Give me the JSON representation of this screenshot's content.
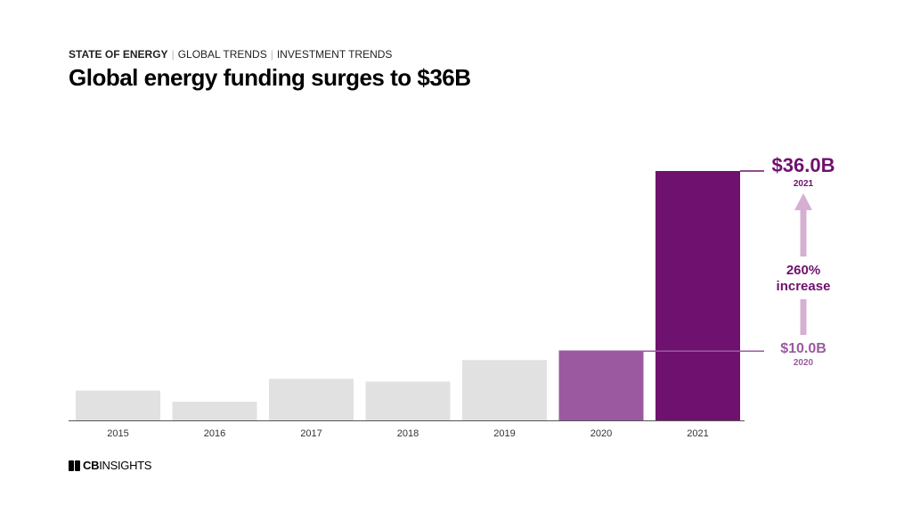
{
  "header": {
    "breadcrumb": [
      "STATE OF ENERGY",
      "GLOBAL TRENDS",
      "INVESTMENT TRENDS"
    ],
    "title": "Global energy funding surges to $36B"
  },
  "chart_data": {
    "type": "bar",
    "categories": [
      "2015",
      "2016",
      "2017",
      "2018",
      "2019",
      "2020",
      "2021"
    ],
    "values": [
      4.3,
      2.7,
      6.0,
      5.6,
      8.7,
      10.0,
      36.0
    ],
    "ylim": [
      0,
      36.0
    ],
    "grid": false,
    "colors": [
      "#e1e1e1",
      "#e1e1e1",
      "#e1e1e1",
      "#e1e1e1",
      "#e1e1e1",
      "#9b5aa0",
      "#6f116e"
    ],
    "annotations": {
      "top_value": "$36.0B",
      "top_year": "2021",
      "increase_pct": "260%",
      "increase_word": "increase",
      "base_value": "$10.0B",
      "base_year": "2020"
    },
    "annotation_colors": {
      "top": "#6f116e",
      "base": "#9b5aa0",
      "arrow": "#d5b0d3",
      "axis": "#555555"
    }
  },
  "footer": {
    "logo_bold": "CB",
    "logo_light": "INSIGHTS"
  }
}
